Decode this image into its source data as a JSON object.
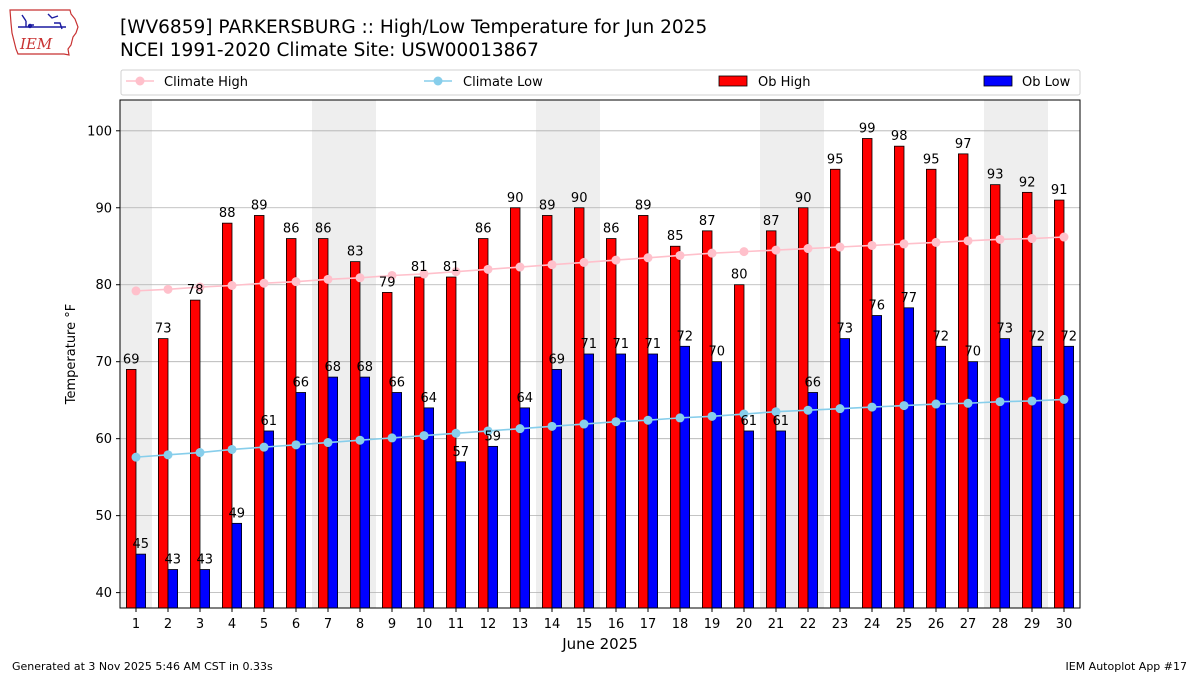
{
  "logo_text": "IEM",
  "title_line1": "[WV6859] PARKERSBURG :: High/Low Temperature for Jun 2025",
  "title_line2": "NCEI 1991-2020 Climate Site: USW00013867",
  "footer_left": "Generated at 3 Nov 2025 5:46 AM CST in 0.33s",
  "footer_right": "IEM Autoplot App #17",
  "colors": {
    "ob_high": "#ff0000",
    "ob_low": "#0000ff",
    "climate_high": "#ffc0cb",
    "climate_low": "#87ceeb",
    "weekend_shade": "#eeeeee",
    "grid": "#b0b0b0"
  },
  "chart_data": {
    "type": "bar",
    "xlabel": "June 2025",
    "ylabel": "Temperature °F",
    "ylim": [
      38,
      104
    ],
    "yticks": [
      40,
      50,
      60,
      70,
      80,
      90,
      100
    ],
    "grid": "horizontal",
    "legend_position": "top",
    "categories": [
      "1",
      "2",
      "3",
      "4",
      "5",
      "6",
      "7",
      "8",
      "9",
      "10",
      "11",
      "12",
      "13",
      "14",
      "15",
      "16",
      "17",
      "18",
      "19",
      "20",
      "21",
      "22",
      "23",
      "24",
      "25",
      "26",
      "27",
      "28",
      "29",
      "30"
    ],
    "shaded_weekend_days": [
      1,
      7,
      8,
      14,
      15,
      21,
      22,
      28,
      29
    ],
    "series": [
      {
        "name": "Climate High",
        "kind": "line",
        "values": [
          79.2,
          79.4,
          79.7,
          79.9,
          80.2,
          80.4,
          80.7,
          80.9,
          81.2,
          81.4,
          81.7,
          82.0,
          82.3,
          82.6,
          82.9,
          83.2,
          83.5,
          83.8,
          84.1,
          84.3,
          84.5,
          84.7,
          84.9,
          85.1,
          85.3,
          85.5,
          85.7,
          85.9,
          86.0,
          86.2
        ]
      },
      {
        "name": "Climate Low",
        "kind": "line",
        "values": [
          57.6,
          57.9,
          58.2,
          58.6,
          58.9,
          59.2,
          59.5,
          59.8,
          60.1,
          60.4,
          60.7,
          61.0,
          61.3,
          61.6,
          61.9,
          62.2,
          62.4,
          62.7,
          62.9,
          63.2,
          63.5,
          63.7,
          63.9,
          64.1,
          64.3,
          64.5,
          64.6,
          64.8,
          64.9,
          65.1
        ]
      },
      {
        "name": "Ob High",
        "kind": "bar",
        "values": [
          69,
          73,
          78,
          88,
          89,
          86,
          86,
          83,
          79,
          81,
          81,
          86,
          90,
          89,
          90,
          86,
          89,
          85,
          87,
          80,
          87,
          90,
          95,
          99,
          98,
          95,
          97,
          93,
          92,
          91
        ]
      },
      {
        "name": "Ob Low",
        "kind": "bar",
        "values": [
          45,
          43,
          43,
          49,
          61,
          66,
          68,
          68,
          66,
          64,
          57,
          59,
          64,
          69,
          71,
          71,
          71,
          72,
          70,
          61,
          61,
          66,
          73,
          76,
          77,
          72,
          70,
          73,
          72,
          72
        ]
      }
    ]
  }
}
